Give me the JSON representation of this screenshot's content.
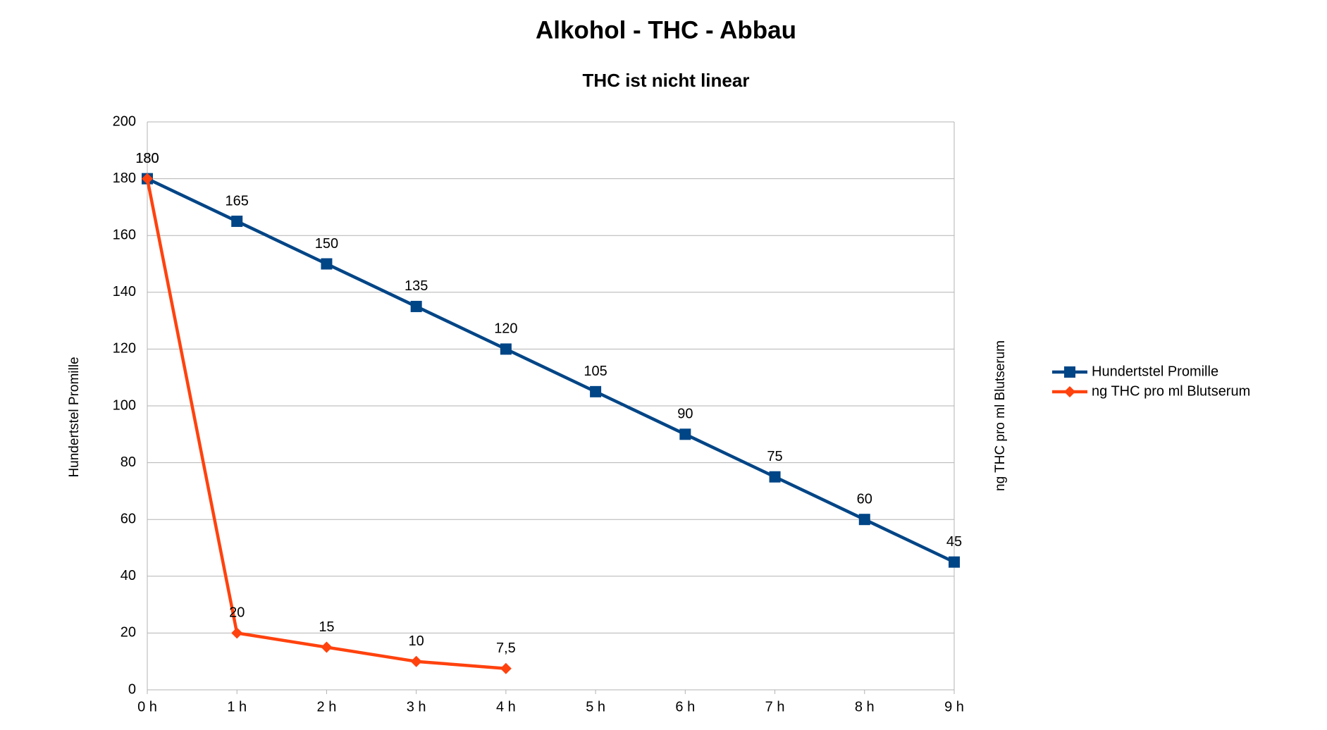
{
  "chart_data": {
    "type": "line",
    "title": "Alkohol - THC - Abbau",
    "subtitle": "THC ist nicht linear",
    "ylabel": "Hundertstel Promille",
    "y2label": "ng THC pro ml Blutserum",
    "categories": [
      "0 h",
      "1 h",
      "2 h",
      "3 h",
      "4 h",
      "5 h",
      "6 h",
      "7 h",
      "8 h",
      "9 h"
    ],
    "series": [
      {
        "name": "Hundertstel Promille",
        "color": "#004586",
        "marker": "square",
        "values": [
          180,
          165,
          150,
          135,
          120,
          105,
          90,
          75,
          60,
          45
        ]
      },
      {
        "name": "ng THC pro ml Blutserum",
        "color": "#ff420e",
        "marker": "diamond",
        "values": [
          180,
          20,
          15,
          10,
          7.5,
          null,
          null,
          null,
          null,
          null
        ],
        "value_labels": [
          "180",
          "20",
          "15",
          "10",
          "7,5",
          null,
          null,
          null,
          null,
          null
        ]
      }
    ],
    "ylim": [
      0,
      200
    ],
    "yticks": [
      0,
      20,
      40,
      60,
      80,
      100,
      120,
      140,
      160,
      180,
      200
    ],
    "grid": true,
    "data_labels": true,
    "legend": "right"
  }
}
